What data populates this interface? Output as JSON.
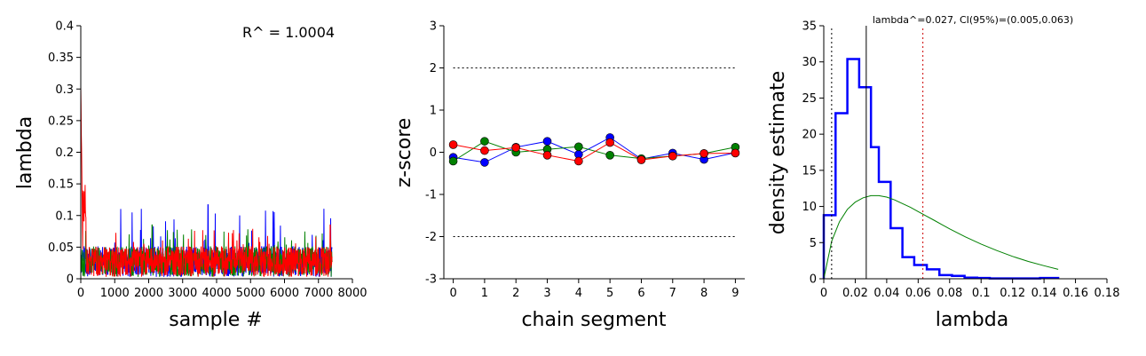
{
  "colors": {
    "chain1": "#0000ff",
    "chain2": "#008000",
    "chain3": "#ff0000",
    "axis": "#000000",
    "blue_hist": "#0000ff",
    "green_curve": "#008000",
    "ci_line": "#cc0000"
  },
  "chart_data": [
    {
      "type": "line",
      "panel": "trace",
      "xlabel": "sample #",
      "ylabel": "lambda",
      "annotation": "R^ = 1.0004",
      "xlim": [
        0,
        8000
      ],
      "ylim": [
        0,
        0.4
      ],
      "xticks": [
        0,
        1000,
        2000,
        3000,
        4000,
        5000,
        6000,
        7000,
        8000
      ],
      "yticks": [
        0,
        0.05,
        0.1,
        0.15,
        0.2,
        0.25,
        0.3,
        0.35,
        0.4
      ],
      "xtick_labels": [
        "0",
        "1000",
        "2000",
        "3000",
        "4000",
        "5000",
        "6000",
        "7000",
        "8000"
      ],
      "ytick_labels": [
        "0",
        "0.05",
        "0.1",
        "0.15",
        "0.2",
        "0.25",
        "0.3",
        "0.35",
        "0.4"
      ],
      "n_samples": 7400,
      "series": [
        {
          "color": "chain1",
          "start": 0.03,
          "level": 0.028,
          "max_spike": 0.117,
          "spike_at": 3750
        },
        {
          "color": "chain2",
          "start": 0.03,
          "level": 0.028,
          "max_spike": 0.085,
          "spike_at": 2100
        },
        {
          "color": "chain3",
          "start": 0.3,
          "level": 0.028,
          "max_spike": 0.085,
          "spike_at": 7350
        }
      ]
    },
    {
      "type": "line",
      "panel": "geweke",
      "xlabel": "chain segment",
      "ylabel": "z-score",
      "xlim": [
        -0.3,
        9.3
      ],
      "ylim": [
        -3,
        3
      ],
      "xticks": [
        0,
        1,
        2,
        3,
        4,
        5,
        6,
        7,
        8,
        9
      ],
      "yticks": [
        -3,
        -2,
        -1,
        0,
        1,
        2,
        3
      ],
      "xtick_labels": [
        "0",
        "1",
        "2",
        "3",
        "4",
        "5",
        "6",
        "7",
        "8",
        "9"
      ],
      "ytick_labels": [
        "-3",
        "-2",
        "-1",
        "0",
        "1",
        "2",
        "3"
      ],
      "reference_lines": [
        2,
        -2
      ],
      "x": [
        0,
        1,
        2,
        3,
        4,
        5,
        6,
        7,
        8,
        9
      ],
      "series": [
        {
          "color": "chain1",
          "values": [
            -0.12,
            -0.24,
            0.12,
            0.26,
            -0.05,
            0.35,
            -0.16,
            -0.02,
            -0.17,
            -0.01
          ]
        },
        {
          "color": "chain2",
          "values": [
            -0.21,
            0.26,
            0.0,
            0.07,
            0.13,
            -0.07,
            -0.15,
            -0.09,
            -0.03,
            0.12
          ]
        },
        {
          "color": "chain3",
          "values": [
            0.18,
            0.04,
            0.11,
            -0.07,
            -0.21,
            0.23,
            -0.18,
            -0.09,
            -0.03,
            -0.02
          ]
        }
      ]
    },
    {
      "type": "area",
      "panel": "posterior",
      "xlabel": "lambda",
      "ylabel": "density estimate",
      "title": "lambda^=0.027, CI(95%)=(0.005,0.063)",
      "xlim": [
        0,
        0.18
      ],
      "ylim": [
        0,
        35
      ],
      "xticks": [
        0,
        0.02,
        0.04,
        0.06,
        0.08,
        0.1,
        0.12,
        0.14,
        0.16,
        0.18
      ],
      "yticks": [
        0,
        5,
        10,
        15,
        20,
        25,
        30,
        35
      ],
      "xtick_labels": [
        "0",
        "0.02",
        "0.04",
        "0.06",
        "0.08",
        "0.1",
        "0.12",
        "0.14",
        "0.16",
        "0.18"
      ],
      "ytick_labels": [
        "0",
        "5",
        "10",
        "15",
        "20",
        "25",
        "30",
        "35"
      ],
      "histogram": {
        "bin_edges": [
          0,
          0.0075,
          0.015,
          0.0225,
          0.03,
          0.035,
          0.0425,
          0.05,
          0.0575,
          0.0655,
          0.0735,
          0.0815,
          0.0895,
          0.0975,
          0.1055,
          0.1135,
          0.1215,
          0.1295,
          0.1375,
          0.149
        ],
        "densities": [
          8.8,
          22.9,
          30.4,
          26.5,
          18.2,
          13.4,
          7.0,
          3.0,
          1.9,
          1.3,
          0.5,
          0.4,
          0.15,
          0.1,
          0.05,
          0.05,
          0.05,
          0.05,
          0.1
        ]
      },
      "prior_curve": {
        "x": [
          0,
          0.005,
          0.01,
          0.015,
          0.02,
          0.025,
          0.03,
          0.035,
          0.04,
          0.045,
          0.05,
          0.055,
          0.06,
          0.065,
          0.07,
          0.075,
          0.08,
          0.09,
          0.1,
          0.11,
          0.12,
          0.13,
          0.14,
          0.149
        ],
        "y": [
          0,
          5.2,
          7.9,
          9.6,
          10.6,
          11.2,
          11.5,
          11.5,
          11.3,
          10.9,
          10.4,
          9.9,
          9.3,
          8.7,
          8.1,
          7.5,
          6.9,
          5.8,
          4.8,
          3.9,
          3.1,
          2.4,
          1.8,
          1.3
        ]
      },
      "estimate": 0.027,
      "ci": [
        0.005,
        0.063
      ]
    }
  ]
}
